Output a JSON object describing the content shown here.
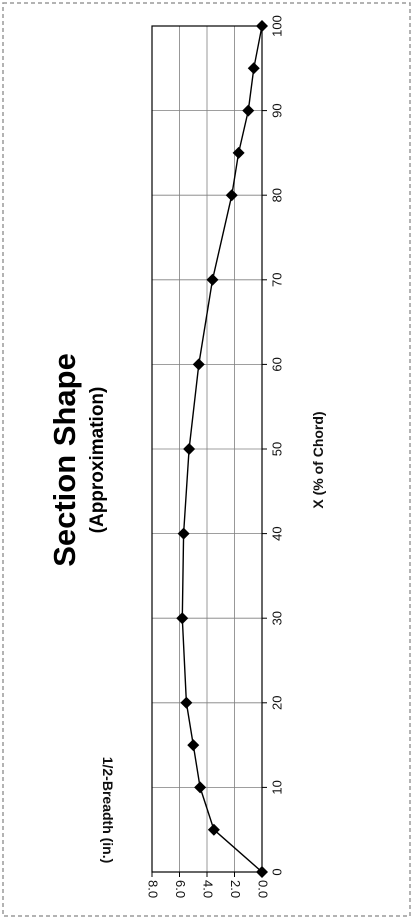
{
  "chart_data": {
    "type": "line",
    "title": "Section Shape",
    "subtitle": "(Approximation)",
    "xlabel": "X (% of Chord)",
    "ylabel": "1/2-Breadth  (in.)",
    "xlim": [
      0,
      100
    ],
    "ylim": [
      0,
      8
    ],
    "x_ticks": [
      "0",
      "10",
      "20",
      "30",
      "40",
      "50",
      "60",
      "70",
      "80",
      "90",
      "100"
    ],
    "y_ticks": [
      "0.0",
      "2.0",
      "4.0",
      "6.0",
      "8.0"
    ],
    "grid": true,
    "legend": "none",
    "marker": "diamond",
    "series": [
      {
        "x": [
          0,
          5,
          10,
          15,
          20,
          30,
          40,
          50,
          60,
          70,
          80,
          85,
          90,
          95,
          100
        ],
        "y": [
          0.0,
          3.5,
          4.5,
          5.0,
          5.5,
          5.8,
          5.7,
          5.3,
          4.6,
          3.6,
          2.2,
          1.7,
          1.0,
          0.6,
          0.0
        ]
      }
    ],
    "colors": {
      "line": "#000000",
      "grid": "#7f7f7f",
      "frame": "#000000",
      "border": "#9a9a9a"
    }
  }
}
